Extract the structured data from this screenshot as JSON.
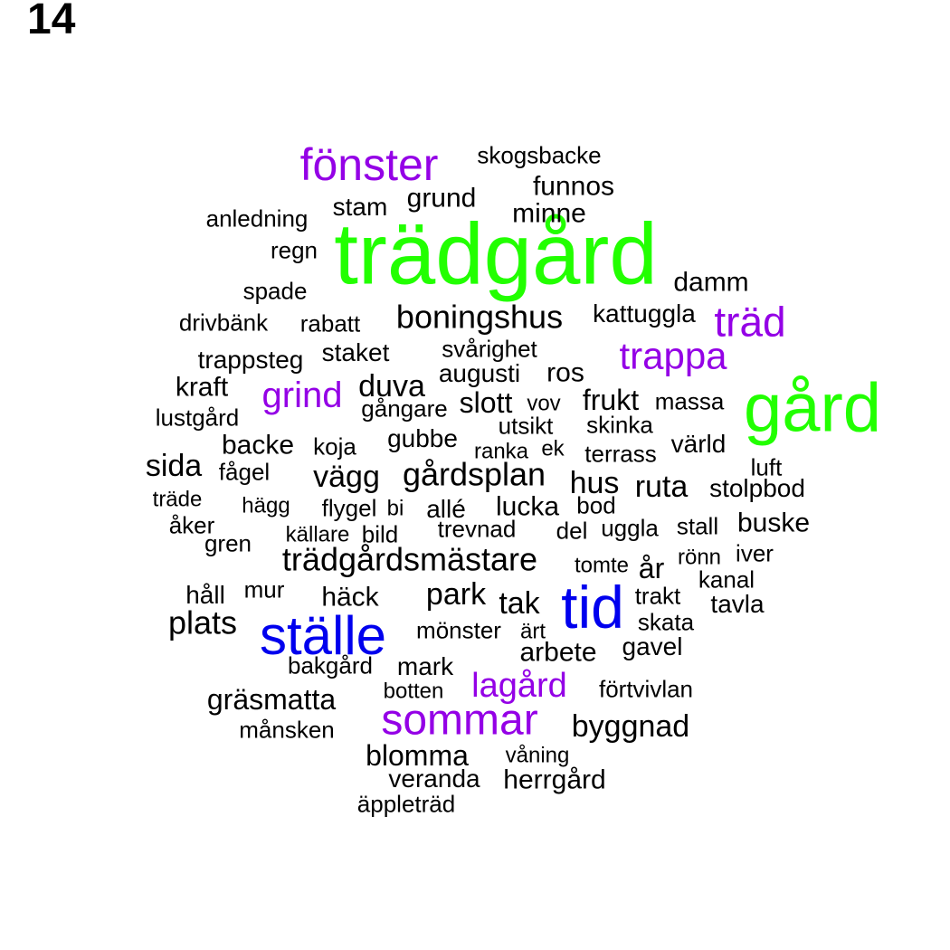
{
  "title": "14",
  "colors": {
    "top": "#22ff00",
    "high": "#0000ee",
    "mid": "#9400e6",
    "base": "#000000"
  },
  "words": [
    {
      "text": "trädgård",
      "tier": "top"
    },
    {
      "text": "gård",
      "tier": "top"
    },
    {
      "text": "tid",
      "tier": "high"
    },
    {
      "text": "ställe",
      "tier": "high"
    },
    {
      "text": "fönster",
      "tier": "mid"
    },
    {
      "text": "sommar",
      "tier": "mid"
    },
    {
      "text": "träd",
      "tier": "mid"
    },
    {
      "text": "trappa",
      "tier": "mid"
    },
    {
      "text": "grind",
      "tier": "mid"
    },
    {
      "text": "lagård",
      "tier": "mid"
    },
    {
      "text": "skogsbacke",
      "tier": "base"
    },
    {
      "text": "funnos",
      "tier": "base"
    },
    {
      "text": "grund",
      "tier": "base"
    },
    {
      "text": "stam",
      "tier": "base"
    },
    {
      "text": "minne",
      "tier": "base"
    },
    {
      "text": "anledning",
      "tier": "base"
    },
    {
      "text": "regn",
      "tier": "base"
    },
    {
      "text": "damm",
      "tier": "base"
    },
    {
      "text": "spade",
      "tier": "base"
    },
    {
      "text": "boningshus",
      "tier": "base"
    },
    {
      "text": "kattuggla",
      "tier": "base"
    },
    {
      "text": "drivbänk",
      "tier": "base"
    },
    {
      "text": "rabatt",
      "tier": "base"
    },
    {
      "text": "svårighet",
      "tier": "base"
    },
    {
      "text": "staket",
      "tier": "base"
    },
    {
      "text": "trappsteg",
      "tier": "base"
    },
    {
      "text": "augusti",
      "tier": "base"
    },
    {
      "text": "ros",
      "tier": "base"
    },
    {
      "text": "kraft",
      "tier": "base"
    },
    {
      "text": "duva",
      "tier": "base"
    },
    {
      "text": "slott",
      "tier": "base"
    },
    {
      "text": "vov",
      "tier": "base"
    },
    {
      "text": "frukt",
      "tier": "base"
    },
    {
      "text": "massa",
      "tier": "base"
    },
    {
      "text": "gångare",
      "tier": "base"
    },
    {
      "text": "lustgård",
      "tier": "base"
    },
    {
      "text": "utsikt",
      "tier": "base"
    },
    {
      "text": "skinka",
      "tier": "base"
    },
    {
      "text": "gubbe",
      "tier": "base"
    },
    {
      "text": "backe",
      "tier": "base"
    },
    {
      "text": "koja",
      "tier": "base"
    },
    {
      "text": "ranka",
      "tier": "base"
    },
    {
      "text": "ek",
      "tier": "base"
    },
    {
      "text": "terrass",
      "tier": "base"
    },
    {
      "text": "värld",
      "tier": "base"
    },
    {
      "text": "sida",
      "tier": "base"
    },
    {
      "text": "fågel",
      "tier": "base"
    },
    {
      "text": "vägg",
      "tier": "base"
    },
    {
      "text": "gårdsplan",
      "tier": "base"
    },
    {
      "text": "luft",
      "tier": "base"
    },
    {
      "text": "hus",
      "tier": "base"
    },
    {
      "text": "ruta",
      "tier": "base"
    },
    {
      "text": "stolpbod",
      "tier": "base"
    },
    {
      "text": "träde",
      "tier": "base"
    },
    {
      "text": "hägg",
      "tier": "base"
    },
    {
      "text": "flygel",
      "tier": "base"
    },
    {
      "text": "bi",
      "tier": "base"
    },
    {
      "text": "allé",
      "tier": "base"
    },
    {
      "text": "lucka",
      "tier": "base"
    },
    {
      "text": "bod",
      "tier": "base"
    },
    {
      "text": "åker",
      "tier": "base"
    },
    {
      "text": "källare",
      "tier": "base"
    },
    {
      "text": "bild",
      "tier": "base"
    },
    {
      "text": "trevnad",
      "tier": "base"
    },
    {
      "text": "del",
      "tier": "base"
    },
    {
      "text": "uggla",
      "tier": "base"
    },
    {
      "text": "stall",
      "tier": "base"
    },
    {
      "text": "buske",
      "tier": "base"
    },
    {
      "text": "gren",
      "tier": "base"
    },
    {
      "text": "trädgårdsmästare",
      "tier": "base"
    },
    {
      "text": "tomte",
      "tier": "base"
    },
    {
      "text": "år",
      "tier": "base"
    },
    {
      "text": "rönn",
      "tier": "base"
    },
    {
      "text": "iver",
      "tier": "base"
    },
    {
      "text": "kanal",
      "tier": "base"
    },
    {
      "text": "håll",
      "tier": "base"
    },
    {
      "text": "mur",
      "tier": "base"
    },
    {
      "text": "häck",
      "tier": "base"
    },
    {
      "text": "park",
      "tier": "base"
    },
    {
      "text": "tak",
      "tier": "base"
    },
    {
      "text": "trakt",
      "tier": "base"
    },
    {
      "text": "tavla",
      "tier": "base"
    },
    {
      "text": "plats",
      "tier": "base"
    },
    {
      "text": "mönster",
      "tier": "base"
    },
    {
      "text": "ärt",
      "tier": "base"
    },
    {
      "text": "skata",
      "tier": "base"
    },
    {
      "text": "gavel",
      "tier": "base"
    },
    {
      "text": "arbete",
      "tier": "base"
    },
    {
      "text": "bakgård",
      "tier": "base"
    },
    {
      "text": "mark",
      "tier": "base"
    },
    {
      "text": "gräsmatta",
      "tier": "base"
    },
    {
      "text": "botten",
      "tier": "base"
    },
    {
      "text": "förtvivlan",
      "tier": "base"
    },
    {
      "text": "månsken",
      "tier": "base"
    },
    {
      "text": "byggnad",
      "tier": "base"
    },
    {
      "text": "blomma",
      "tier": "base"
    },
    {
      "text": "våning",
      "tier": "base"
    },
    {
      "text": "veranda",
      "tier": "base"
    },
    {
      "text": "herrgård",
      "tier": "base"
    },
    {
      "text": "äppleträd",
      "tier": "base"
    }
  ]
}
